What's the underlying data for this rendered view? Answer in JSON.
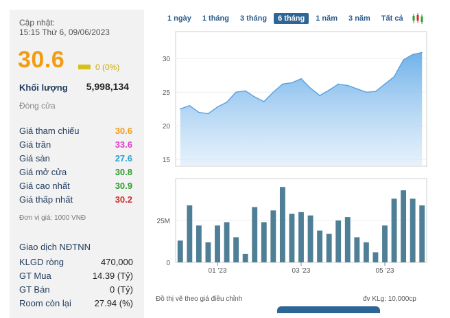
{
  "quote": {
    "update_label": "Cập nhật:",
    "update_time": "15:15 Thứ 6, 09/06/2023",
    "price": "30.6",
    "change": "0 (0%)",
    "volume_label": "Khối lượng",
    "volume_value": "5,998,134",
    "status": "Đóng cửa",
    "unit_note": "Đơn vị giá: 1000 VNĐ"
  },
  "prices": [
    {
      "label": "Giá tham chiếu",
      "value": "30.6",
      "color": "#f39c12"
    },
    {
      "label": "Giá trần",
      "value": "33.6",
      "color": "#e040c8"
    },
    {
      "label": "Giá sàn",
      "value": "27.6",
      "color": "#2aa3d8"
    },
    {
      "label": "Giá mở cửa",
      "value": "30.8",
      "color": "#2e9e2e"
    },
    {
      "label": "Giá cao nhất",
      "value": "30.9",
      "color": "#2e9e2e"
    },
    {
      "label": "Giá thấp nhất",
      "value": "30.2",
      "color": "#d42a2a"
    }
  ],
  "foreign": {
    "title": "Giao dịch NĐTNN",
    "rows": [
      {
        "label": "KLGD ròng",
        "value": "470,000"
      },
      {
        "label": "GT Mua",
        "value": "14.39 (Tỷ)"
      },
      {
        "label": "GT Bán",
        "value": "0 (Tỷ)"
      },
      {
        "label": "Room còn lại",
        "value": "27.94 (%)"
      }
    ]
  },
  "tabs": [
    "1 ngày",
    "1 tháng",
    "3 tháng",
    "6 tháng",
    "1 năm",
    "3 năm",
    "Tất cả"
  ],
  "active_tab": "6 tháng",
  "footer": {
    "left_note": "Đồ thị vẽ theo giá điều chỉnh",
    "right_note": "đv KLg: 10,000cp"
  },
  "chart_data": {
    "type": "area",
    "price": {
      "values": [
        22.5,
        23.0,
        22.0,
        21.8,
        22.8,
        23.5,
        25.0,
        25.2,
        24.3,
        23.6,
        25.0,
        26.2,
        26.4,
        27.0,
        25.6,
        24.5,
        25.3,
        26.2,
        26.0,
        25.5,
        25.0,
        25.1,
        26.2,
        27.3,
        29.8,
        30.6,
        30.9
      ],
      "yticks": [
        15,
        20,
        25,
        30
      ],
      "ylim": [
        14,
        34
      ],
      "color": "#6aaee8"
    },
    "volume": {
      "values": [
        13,
        34,
        22,
        12,
        22,
        24,
        15,
        5,
        33,
        24,
        31,
        45,
        29,
        30,
        28,
        19,
        17,
        25,
        27,
        15,
        12,
        6,
        22,
        38,
        43,
        38,
        34
      ],
      "yticks_labels": [
        "0",
        "25M"
      ],
      "ytick_values": [
        0,
        25
      ],
      "ylim": [
        0,
        50
      ],
      "color": "#4f7f96"
    },
    "xlabels": [
      {
        "label": "01 '23",
        "index": 4
      },
      {
        "label": "03 '23",
        "index": 13
      },
      {
        "label": "05 '23",
        "index": 22
      }
    ]
  }
}
